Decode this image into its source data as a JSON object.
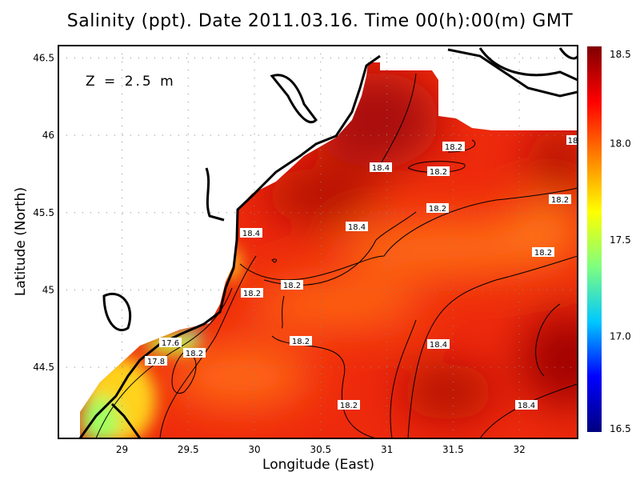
{
  "title": "Salinity (ppt). Date 2011.03.16. Time 00(h):00(m) GMT",
  "depth_label": "Z = 2.5 m",
  "chart_data": {
    "type": "heatmap",
    "title": "Salinity (ppt). Date 2011.03.16. Time 00(h):00(m) GMT",
    "xlabel": "Longitude (East)",
    "ylabel": "Latitude (North)",
    "xlim": [
      28.52,
      32.44
    ],
    "ylim": [
      44.04,
      46.58
    ],
    "x_ticks": [
      "29",
      "29.5",
      "30",
      "30.5",
      "31",
      "31.5",
      "32"
    ],
    "y_ticks": [
      "44.5",
      "45",
      "45.5",
      "46",
      "46.5"
    ],
    "grid": true,
    "colorbar": {
      "range": [
        16.5,
        18.5
      ],
      "ticks": [
        "18.5",
        "18.0",
        "17.5",
        "17.0",
        "16.5"
      ],
      "colors": [
        "#00007f",
        "#0000ff",
        "#00c8ff",
        "#7fff7f",
        "#ffff00",
        "#ff8000",
        "#ff0000",
        "#7f0000"
      ]
    },
    "contour_labels": [
      "18.2",
      "18.4",
      "18.2",
      "18.2",
      "18.4",
      "18.4",
      "18.2",
      "18.2",
      "18.2",
      "18.2",
      "18.2",
      "18.4",
      "17.6",
      "18.2",
      "17.8",
      "18.2",
      "18.4",
      "18"
    ]
  }
}
